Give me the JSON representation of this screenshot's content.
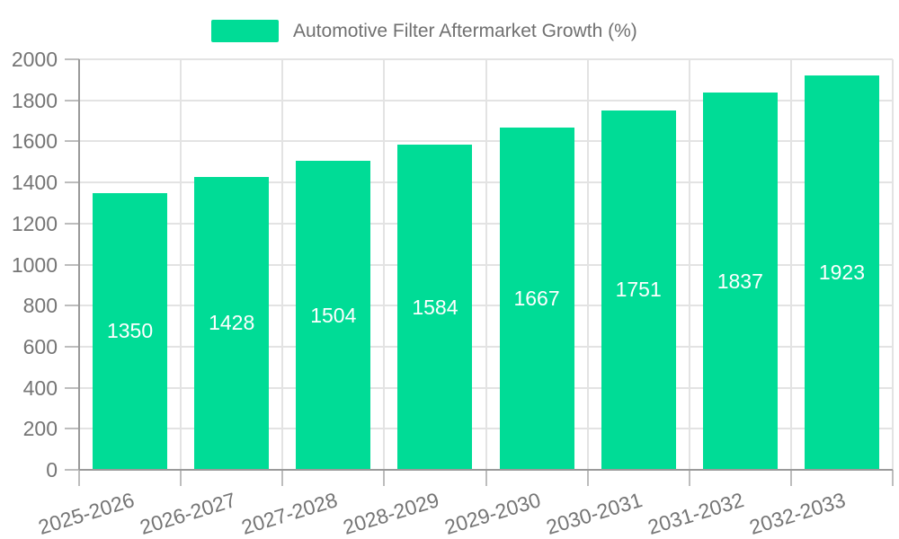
{
  "chart_data": {
    "type": "bar",
    "title": "Automotive Filter Aftermarket Growth (%)",
    "legend_position": "top",
    "categories": [
      "2025-2026",
      "2026-2027",
      "2027-2028",
      "2028-2029",
      "2029-2030",
      "2030-2031",
      "2031-2032",
      "2032-2033"
    ],
    "values": [
      1350,
      1428,
      1504,
      1584,
      1667,
      1751,
      1837,
      1923
    ],
    "xlabel": "",
    "ylabel": "",
    "ylim": [
      0,
      2000
    ],
    "yticks": [
      0,
      200,
      400,
      600,
      800,
      1000,
      1200,
      1400,
      1600,
      1800,
      2000
    ],
    "grid": true,
    "bar_value_labels": "inside-center",
    "colors": {
      "bar": "#00DC96",
      "bar_label": "#FFFFFF",
      "axis_text": "#757575",
      "title_text": "#707070",
      "axis_line": "#9A9A9A",
      "gridline": "#E3E3E3",
      "tick": "#BDBDBD",
      "background": "#FFFFFF"
    }
  }
}
